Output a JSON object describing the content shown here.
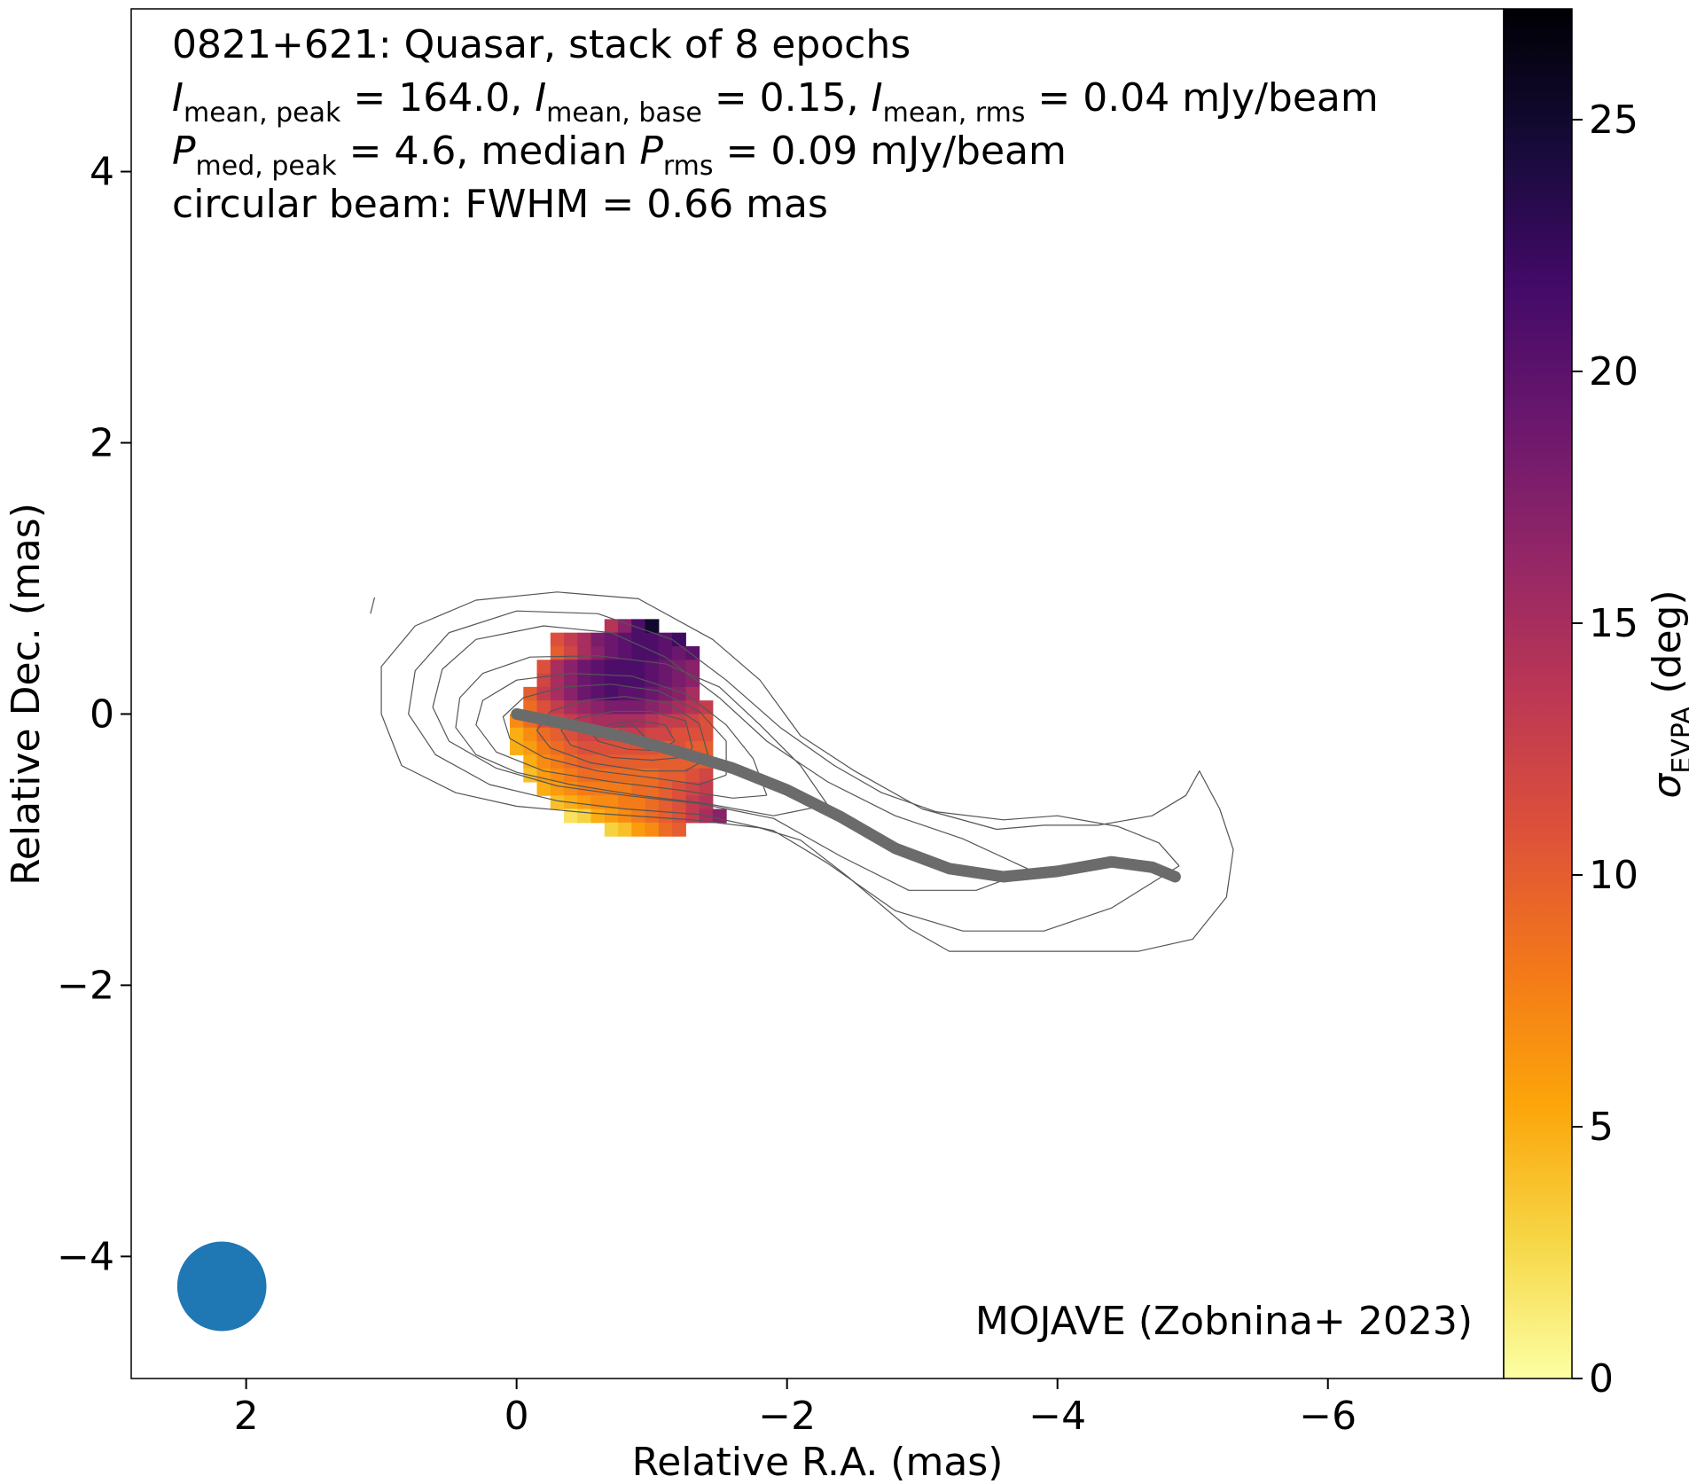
{
  "chart_data": {
    "type": "heatmap",
    "title_lines": [
      {
        "parts": [
          {
            "t": "0821+621: Quasar, stack of 8 epochs"
          }
        ]
      },
      {
        "parts": [
          {
            "t": "I",
            "style": "italic"
          },
          {
            "t": "mean, peak",
            "style": "sub"
          },
          {
            "t": " = 164.0, "
          },
          {
            "t": "I",
            "style": "italic"
          },
          {
            "t": "mean, base",
            "style": "sub"
          },
          {
            "t": " = 0.15, "
          },
          {
            "t": "I",
            "style": "italic"
          },
          {
            "t": "mean, rms",
            "style": "sub"
          },
          {
            "t": " = 0.04 mJy/beam"
          }
        ]
      },
      {
        "parts": [
          {
            "t": "P",
            "style": "italic"
          },
          {
            "t": "med, peak",
            "style": "sub"
          },
          {
            "t": " = 4.6, median "
          },
          {
            "t": "P",
            "style": "italic"
          },
          {
            "t": "rms",
            "style": "sub"
          },
          {
            "t": " = 0.09 mJy/beam"
          }
        ]
      },
      {
        "parts": [
          {
            "t": "circular beam: FWHM = 0.66 mas"
          }
        ]
      }
    ],
    "credit": "MOJAVE (Zobnina+ 2023)",
    "xlabel": "Relative R.A. (mas)",
    "ylabel": "Relative Dec. (mas)",
    "xlim": [
      2.85,
      -7.3
    ],
    "ylim": [
      -4.9,
      5.2
    ],
    "xticks": [
      2,
      0,
      -2,
      -4,
      -6
    ],
    "yticks": [
      -4,
      -2,
      0,
      2,
      4
    ],
    "colorbar": {
      "label_main": "σ",
      "label_sub": "EVPA",
      "label_unit": " (deg)",
      "range": [
        0,
        27.2
      ],
      "ticks": [
        0,
        5,
        10,
        15,
        20,
        25
      ],
      "colormap": "inferno_r",
      "stops": [
        "#fcffa4",
        "#f6d746",
        "#fca50a",
        "#f37819",
        "#dd513a",
        "#bc3754",
        "#932667",
        "#6a176e",
        "#420a68",
        "#160b39",
        "#000004"
      ]
    },
    "beam": {
      "x": 2.18,
      "y": -4.22,
      "fwhm_mas": 0.66,
      "color": "#1f77b4"
    },
    "ridge_line": {
      "color": "#6b6b6b",
      "points": [
        [
          0,
          0
        ],
        [
          -0.4,
          -0.08
        ],
        [
          -0.8,
          -0.17
        ],
        [
          -1.2,
          -0.28
        ],
        [
          -1.6,
          -0.4
        ],
        [
          -2.0,
          -0.56
        ],
        [
          -2.4,
          -0.76
        ],
        [
          -2.8,
          -0.99
        ],
        [
          -3.2,
          -1.14
        ],
        [
          -3.6,
          -1.2
        ],
        [
          -4.0,
          -1.16
        ],
        [
          -4.4,
          -1.09
        ],
        [
          -4.7,
          -1.13
        ],
        [
          -4.87,
          -1.2
        ]
      ]
    },
    "evpa_error_map": {
      "pixel_mas": 0.1,
      "rows": [
        {
          "y": 0.65,
          "x0": -0.7,
          "values": [
            14,
            17,
            21,
            25
          ]
        },
        {
          "y": 0.55,
          "x0": -0.3,
          "values": [
            11,
            13,
            15,
            18,
            19,
            20,
            21,
            21,
            20,
            22
          ]
        },
        {
          "y": 0.45,
          "x0": -0.3,
          "values": [
            10,
            12,
            15,
            17,
            19,
            20,
            21,
            21,
            20,
            19,
            20
          ]
        },
        {
          "y": 0.35,
          "x0": -0.2,
          "values": [
            11,
            15,
            17,
            19,
            20,
            21,
            21,
            21,
            20,
            19,
            18,
            17
          ]
        },
        {
          "y": 0.25,
          "x0": -0.2,
          "values": [
            12,
            15,
            17,
            19,
            20,
            21,
            21,
            21,
            20,
            19,
            18,
            17
          ]
        },
        {
          "y": 0.15,
          "x0": -0.1,
          "values": [
            10,
            13,
            15,
            17,
            19,
            20,
            21,
            20,
            20,
            19,
            18,
            17,
            15
          ]
        },
        {
          "y": 0.05,
          "x0": -0.1,
          "values": [
            9,
            11,
            13,
            15,
            16,
            17,
            18,
            18,
            18,
            17,
            16,
            15,
            14,
            13
          ]
        },
        {
          "y": -0.05,
          "x0": 0.0,
          "values": [
            7,
            9,
            11,
            12,
            13,
            14,
            15,
            15,
            15,
            15,
            14,
            13,
            13,
            12,
            11
          ]
        },
        {
          "y": -0.15,
          "x0": 0.0,
          "values": [
            5,
            7,
            9,
            10,
            11,
            12,
            12,
            12,
            13,
            13,
            12,
            12,
            11,
            11,
            11
          ]
        },
        {
          "y": -0.25,
          "x0": 0.0,
          "values": [
            5,
            6,
            8,
            9,
            10,
            11,
            11,
            11,
            11,
            11,
            11,
            10,
            11,
            10,
            10
          ]
        },
        {
          "y": -0.35,
          "x0": -0.1,
          "values": [
            5,
            7,
            8,
            9,
            10,
            10,
            10,
            10,
            10,
            10,
            10,
            10,
            10,
            10
          ]
        },
        {
          "y": -0.45,
          "x0": -0.1,
          "values": [
            4,
            6,
            7,
            8,
            9,
            9,
            9,
            9,
            9,
            9,
            10,
            10,
            11,
            12
          ]
        },
        {
          "y": -0.55,
          "x0": -0.2,
          "values": [
            5,
            6,
            7,
            8,
            8,
            8,
            8,
            9,
            9,
            10,
            11,
            12,
            13
          ]
        },
        {
          "y": -0.65,
          "x0": -0.3,
          "values": [
            4,
            5,
            6,
            7,
            7,
            8,
            8,
            9,
            10,
            11,
            13,
            14
          ]
        },
        {
          "y": -0.75,
          "x0": -0.4,
          "values": [
            2,
            3,
            5,
            6,
            7,
            8,
            9,
            10,
            11,
            13,
            15,
            17
          ]
        },
        {
          "y": -0.85,
          "x0": -0.7,
          "values": [
            3,
            4,
            6,
            7,
            9,
            10
          ]
        }
      ]
    },
    "contours": [
      [
        [
          1.05,
          0.86
        ],
        [
          1.08,
          0.74
        ]
      ],
      [
        [
          -0.55,
          -0.73
        ],
        [
          -1.3,
          -0.78
        ],
        [
          -1.8,
          -0.84
        ],
        [
          -2.1,
          -0.93
        ],
        [
          -2.45,
          -1.2
        ],
        [
          -2.9,
          -1.58
        ],
        [
          -3.2,
          -1.75
        ],
        [
          -3.7,
          -1.75
        ],
        [
          -4.1,
          -1.75
        ],
        [
          -4.6,
          -1.75
        ],
        [
          -5.0,
          -1.66
        ],
        [
          -5.25,
          -1.35
        ],
        [
          -5.3,
          -1.0
        ],
        [
          -5.2,
          -0.7
        ],
        [
          -5.05,
          -0.42
        ],
        [
          -4.95,
          -0.6
        ],
        [
          -4.7,
          -0.75
        ],
        [
          -4.3,
          -0.82
        ],
        [
          -3.9,
          -0.82
        ],
        [
          -3.55,
          -0.85
        ],
        [
          -3.0,
          -0.7
        ],
        [
          -2.5,
          -0.42
        ],
        [
          -2.1,
          -0.16
        ],
        [
          -1.8,
          0.25
        ],
        [
          -1.45,
          0.55
        ],
        [
          -0.9,
          0.85
        ],
        [
          -0.3,
          0.9
        ],
        [
          0.3,
          0.84
        ],
        [
          0.75,
          0.65
        ],
        [
          1.0,
          0.35
        ],
        [
          1.0,
          0.0
        ],
        [
          0.85,
          -0.38
        ],
        [
          0.45,
          -0.58
        ],
        [
          0.0,
          -0.68
        ],
        [
          -0.55,
          -0.73
        ]
      ],
      [
        [
          -4.9,
          -1.12
        ],
        [
          -4.4,
          -1.43
        ],
        [
          -3.9,
          -1.6
        ],
        [
          -3.3,
          -1.6
        ],
        [
          -2.8,
          -1.45
        ],
        [
          -2.3,
          -1.1
        ],
        [
          -1.9,
          -0.86
        ],
        [
          -1.35,
          -0.74
        ],
        [
          -0.8,
          -0.7
        ],
        [
          -0.3,
          -0.64
        ],
        [
          0.2,
          -0.52
        ],
        [
          0.6,
          -0.3
        ],
        [
          0.8,
          0.0
        ],
        [
          0.75,
          0.32
        ],
        [
          0.5,
          0.6
        ],
        [
          0.0,
          0.76
        ],
        [
          -0.6,
          0.74
        ],
        [
          -1.15,
          0.55
        ],
        [
          -1.55,
          0.25
        ],
        [
          -1.95,
          -0.1
        ],
        [
          -2.35,
          -0.38
        ],
        [
          -2.7,
          -0.58
        ],
        [
          -3.1,
          -0.72
        ],
        [
          -3.6,
          -0.78
        ],
        [
          -4.0,
          -0.75
        ],
        [
          -4.45,
          -0.83
        ],
        [
          -4.75,
          -0.95
        ],
        [
          -4.9,
          -1.12
        ]
      ],
      [
        [
          -3.8,
          -1.15
        ],
        [
          -3.4,
          -1.3
        ],
        [
          -2.9,
          -1.3
        ],
        [
          -2.4,
          -1.05
        ],
        [
          -1.9,
          -0.77
        ],
        [
          -1.35,
          -0.66
        ],
        [
          -0.8,
          -0.6
        ],
        [
          -0.3,
          -0.53
        ],
        [
          0.15,
          -0.4
        ],
        [
          0.5,
          -0.2
        ],
        [
          0.62,
          0.05
        ],
        [
          0.55,
          0.33
        ],
        [
          0.3,
          0.55
        ],
        [
          -0.2,
          0.65
        ],
        [
          -0.7,
          0.6
        ],
        [
          -1.1,
          0.42
        ],
        [
          -1.5,
          0.12
        ],
        [
          -1.85,
          -0.2
        ],
        [
          -2.3,
          -0.5
        ],
        [
          -2.8,
          -0.75
        ],
        [
          -3.3,
          -0.92
        ],
        [
          -3.8,
          -1.15
        ]
      ],
      [
        [
          -2.3,
          -0.67
        ],
        [
          -2.1,
          -0.38
        ],
        [
          -1.8,
          -0.08
        ],
        [
          -1.5,
          0.2
        ],
        [
          -1.1,
          0.37
        ],
        [
          -0.6,
          0.43
        ],
        [
          -0.1,
          0.42
        ],
        [
          0.25,
          0.3
        ],
        [
          0.42,
          0.12
        ],
        [
          0.45,
          -0.1
        ],
        [
          0.3,
          -0.3
        ],
        [
          0.0,
          -0.43
        ],
        [
          -0.4,
          -0.52
        ],
        [
          -0.9,
          -0.6
        ],
        [
          -1.4,
          -0.66
        ],
        [
          -1.9,
          -0.75
        ],
        [
          -2.3,
          -0.67
        ]
      ],
      [
        [
          -1.85,
          -0.6
        ],
        [
          -1.75,
          -0.33
        ],
        [
          -1.55,
          -0.08
        ],
        [
          -1.25,
          0.15
        ],
        [
          -0.85,
          0.28
        ],
        [
          -0.4,
          0.3
        ],
        [
          0.0,
          0.25
        ],
        [
          0.25,
          0.1
        ],
        [
          0.3,
          -0.08
        ],
        [
          0.15,
          -0.28
        ],
        [
          -0.2,
          -0.42
        ],
        [
          -0.7,
          -0.5
        ],
        [
          -1.2,
          -0.56
        ],
        [
          -1.6,
          -0.62
        ],
        [
          -1.85,
          -0.6
        ]
      ],
      [
        [
          -1.55,
          -0.45
        ],
        [
          -1.55,
          -0.2
        ],
        [
          -1.35,
          0.02
        ],
        [
          -1.05,
          0.17
        ],
        [
          -0.7,
          0.22
        ],
        [
          -0.35,
          0.2
        ],
        [
          -0.05,
          0.12
        ],
        [
          0.1,
          -0.02
        ],
        [
          0.05,
          -0.18
        ],
        [
          -0.2,
          -0.32
        ],
        [
          -0.6,
          -0.42
        ],
        [
          -1.0,
          -0.47
        ],
        [
          -1.35,
          -0.52
        ],
        [
          -1.55,
          -0.45
        ]
      ],
      [
        [
          -1.42,
          -0.32
        ],
        [
          -1.35,
          -0.07
        ],
        [
          -1.12,
          0.08
        ],
        [
          -0.8,
          0.13
        ],
        [
          -0.5,
          0.1
        ],
        [
          -0.25,
          0.02
        ],
        [
          -0.15,
          -0.12
        ],
        [
          -0.25,
          -0.25
        ],
        [
          -0.55,
          -0.36
        ],
        [
          -0.95,
          -0.42
        ],
        [
          -1.25,
          -0.42
        ],
        [
          -1.42,
          -0.32
        ]
      ],
      [
        [
          -1.3,
          -0.25
        ],
        [
          -1.25,
          -0.05
        ],
        [
          -1.0,
          0.02
        ],
        [
          -0.72,
          0.02
        ],
        [
          -0.45,
          -0.03
        ],
        [
          -0.33,
          -0.12
        ],
        [
          -0.4,
          -0.23
        ],
        [
          -0.7,
          -0.32
        ],
        [
          -1.0,
          -0.34
        ],
        [
          -1.22,
          -0.32
        ],
        [
          -1.3,
          -0.25
        ]
      ],
      [
        [
          -1.17,
          -0.2
        ],
        [
          -1.1,
          -0.08
        ],
        [
          -0.9,
          -0.05
        ],
        [
          -0.7,
          -0.07
        ],
        [
          -0.55,
          -0.13
        ],
        [
          -0.6,
          -0.2
        ],
        [
          -0.82,
          -0.26
        ],
        [
          -1.05,
          -0.27
        ],
        [
          -1.17,
          -0.2
        ]
      ],
      [
        [
          -0.95,
          -0.17
        ],
        [
          -0.86,
          -0.08
        ],
        [
          -0.72,
          -0.1
        ],
        [
          -0.72,
          -0.19
        ],
        [
          -0.86,
          -0.22
        ],
        [
          -0.95,
          -0.17
        ]
      ]
    ]
  }
}
